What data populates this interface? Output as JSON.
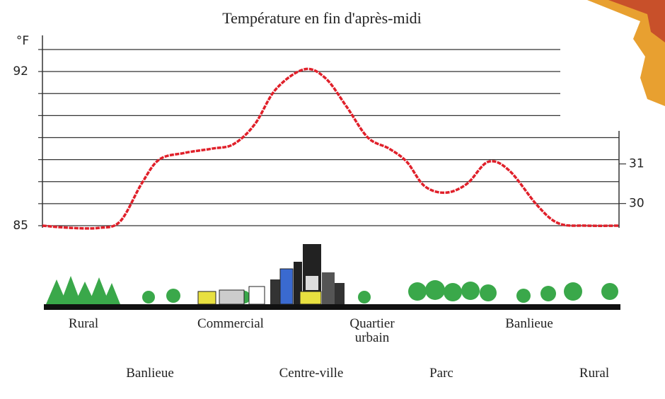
{
  "chart_data": {
    "type": "line",
    "title": "Température en fin d'après-midi",
    "y_label": "°F",
    "color": "#e0202a",
    "xlim": [
      0,
      815
    ],
    "x": [
      0,
      40,
      80,
      110,
      140,
      165,
      200,
      240,
      270,
      300,
      330,
      370,
      400,
      430,
      460,
      490,
      515,
      540,
      570,
      600,
      630,
      660,
      700,
      730,
      770,
      815
    ],
    "values": [
      85.0,
      84.9,
      84.9,
      85.2,
      86.9,
      88.0,
      88.3,
      88.5,
      88.7,
      89.6,
      91.2,
      92.1,
      91.7,
      90.4,
      89.0,
      88.5,
      87.9,
      86.8,
      86.5,
      86.9,
      87.9,
      87.5,
      85.9,
      85.1,
      85.0,
      85.0
    ],
    "ylim": [
      85,
      93
    ],
    "yticks": [
      85,
      92
    ],
    "minor_yticks": [
      86,
      87,
      88,
      89,
      90,
      91,
      93
    ],
    "y2lim": [
      29.44,
      33.89
    ],
    "y2ticks": [
      30,
      31
    ],
    "zone_labels_top": [
      "Rural",
      "Commercial",
      "Quartier urbain",
      "Banlieue"
    ],
    "zone_labels_bottom": [
      "Banlieue",
      "Centre-ville",
      "Parc",
      "Rural"
    ]
  }
}
